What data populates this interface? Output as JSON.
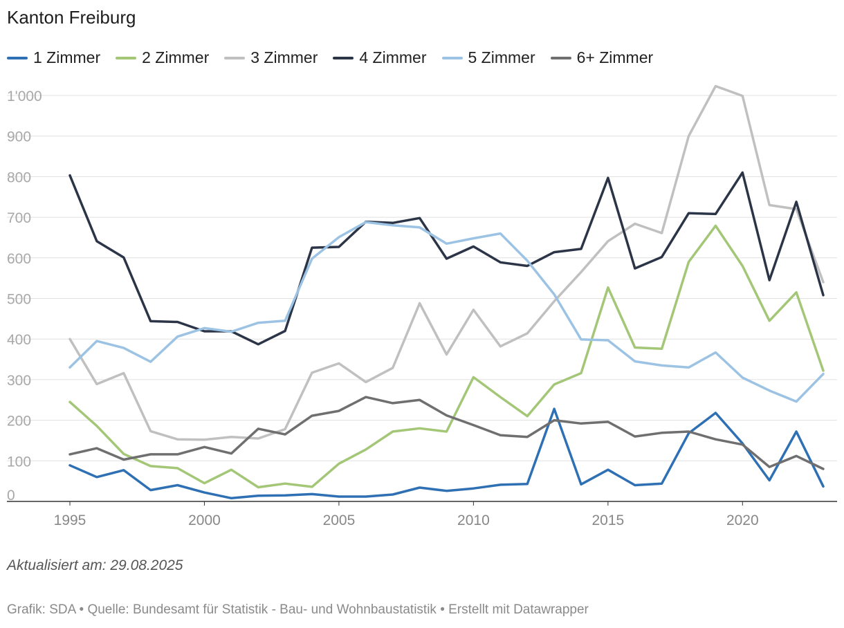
{
  "chart_data": {
    "type": "line",
    "title": "Kanton Freiburg",
    "x": [
      1995,
      1996,
      1997,
      1998,
      1999,
      2000,
      2001,
      2002,
      2003,
      2004,
      2005,
      2006,
      2007,
      2008,
      2009,
      2010,
      2011,
      2012,
      2013,
      2014,
      2015,
      2016,
      2017,
      2018,
      2019,
      2020,
      2021,
      2022,
      2023
    ],
    "xticks": [
      1995,
      2000,
      2005,
      2010,
      2015,
      2020
    ],
    "xtick_labels": [
      "1995",
      "2000",
      "2005",
      "2010",
      "2015",
      "2020"
    ],
    "ylim": [
      0,
      1000
    ],
    "yticks": [
      0,
      100,
      200,
      300,
      400,
      500,
      600,
      700,
      800,
      900,
      1000
    ],
    "ytick_labels": [
      "0",
      "100",
      "200",
      "300",
      "400",
      "500",
      "600",
      "700",
      "800",
      "900",
      "1'000"
    ],
    "grid": true,
    "series": [
      {
        "name": "1 Zimmer",
        "color": "#2e70b3",
        "values": [
          89,
          60,
          77,
          28,
          40,
          22,
          8,
          14,
          15,
          18,
          12,
          12,
          17,
          34,
          26,
          32,
          41,
          43,
          228,
          42,
          78,
          40,
          44,
          168,
          218,
          143,
          52,
          172,
          37
        ]
      },
      {
        "name": "2 Zimmer",
        "color": "#a3c677",
        "values": [
          245,
          186,
          117,
          87,
          82,
          45,
          78,
          35,
          44,
          36,
          93,
          128,
          172,
          180,
          172,
          306,
          257,
          210,
          288,
          316,
          527,
          379,
          376,
          590,
          679,
          580,
          445,
          515,
          322
        ]
      },
      {
        "name": "3 Zimmer",
        "color": "#c0c0c0",
        "values": [
          400,
          289,
          316,
          173,
          153,
          152,
          159,
          155,
          178,
          317,
          340,
          294,
          329,
          488,
          362,
          472,
          382,
          414,
          493,
          565,
          641,
          684,
          661,
          900,
          1023,
          999,
          730,
          720,
          540
        ]
      },
      {
        "name": "4 Zimmer",
        "color": "#2c3547",
        "values": [
          803,
          641,
          601,
          444,
          442,
          419,
          419,
          387,
          420,
          625,
          627,
          689,
          686,
          698,
          598,
          628,
          589,
          580,
          614,
          622,
          797,
          574,
          602,
          710,
          708,
          810,
          545,
          738,
          508
        ]
      },
      {
        "name": "5 Zimmer",
        "color": "#9cc3e3",
        "values": [
          330,
          395,
          378,
          344,
          406,
          427,
          418,
          440,
          445,
          598,
          651,
          688,
          680,
          675,
          635,
          648,
          660,
          593,
          510,
          399,
          397,
          345,
          335,
          330,
          367,
          305,
          273,
          246,
          314
        ]
      },
      {
        "name": "6+ Zimmer",
        "color": "#6f6f6f",
        "values": [
          116,
          131,
          103,
          116,
          116,
          134,
          118,
          179,
          165,
          211,
          223,
          257,
          242,
          250,
          212,
          188,
          163,
          159,
          200,
          192,
          196,
          160,
          169,
          172,
          153,
          140,
          85,
          112,
          80
        ]
      }
    ]
  },
  "note": "Aktualisiert am: 29.08.2025",
  "footer": "Grafik: SDA • Quelle: Bundesamt für Statistik - Bau- und Wohnbaustatistik • Erstellt mit Datawrapper"
}
